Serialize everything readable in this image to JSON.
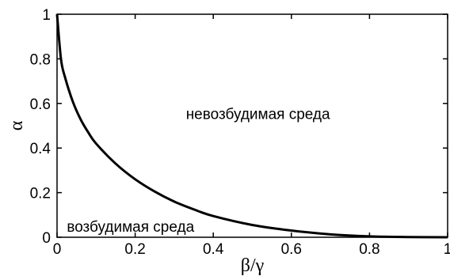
{
  "chart_data": {
    "type": "line",
    "title": "",
    "xlabel": "β/γ",
    "ylabel": "α",
    "xlim": [
      0,
      1
    ],
    "ylim": [
      0,
      1
    ],
    "x_ticks": [
      "0",
      "0.2",
      "0.4",
      "0.6",
      "0.8",
      "1"
    ],
    "y_ticks": [
      "0",
      "0.2",
      "0.4",
      "0.6",
      "0.8",
      "1"
    ],
    "grid": false,
    "legend": "none",
    "line_color": "#000000",
    "series": [
      {
        "x": [
          0,
          0.01,
          0.02,
          0.04,
          0.06,
          0.08,
          0.1,
          0.15,
          0.2,
          0.25,
          0.3,
          0.35,
          0.4,
          0.5,
          0.6,
          0.7,
          0.8,
          0.9,
          1.0
        ],
        "y": [
          1.0,
          0.8,
          0.72,
          0.61,
          0.53,
          0.47,
          0.42,
          0.33,
          0.26,
          0.205,
          0.16,
          0.125,
          0.095,
          0.055,
          0.03,
          0.013,
          0.004,
          0.001,
          0.0
        ]
      }
    ],
    "annotations": [
      {
        "text": "невозбудимая среда",
        "x": 0.33,
        "y": 0.53
      },
      {
        "text": "возбудимая среда",
        "x": 0.025,
        "y": 0.025
      }
    ]
  }
}
